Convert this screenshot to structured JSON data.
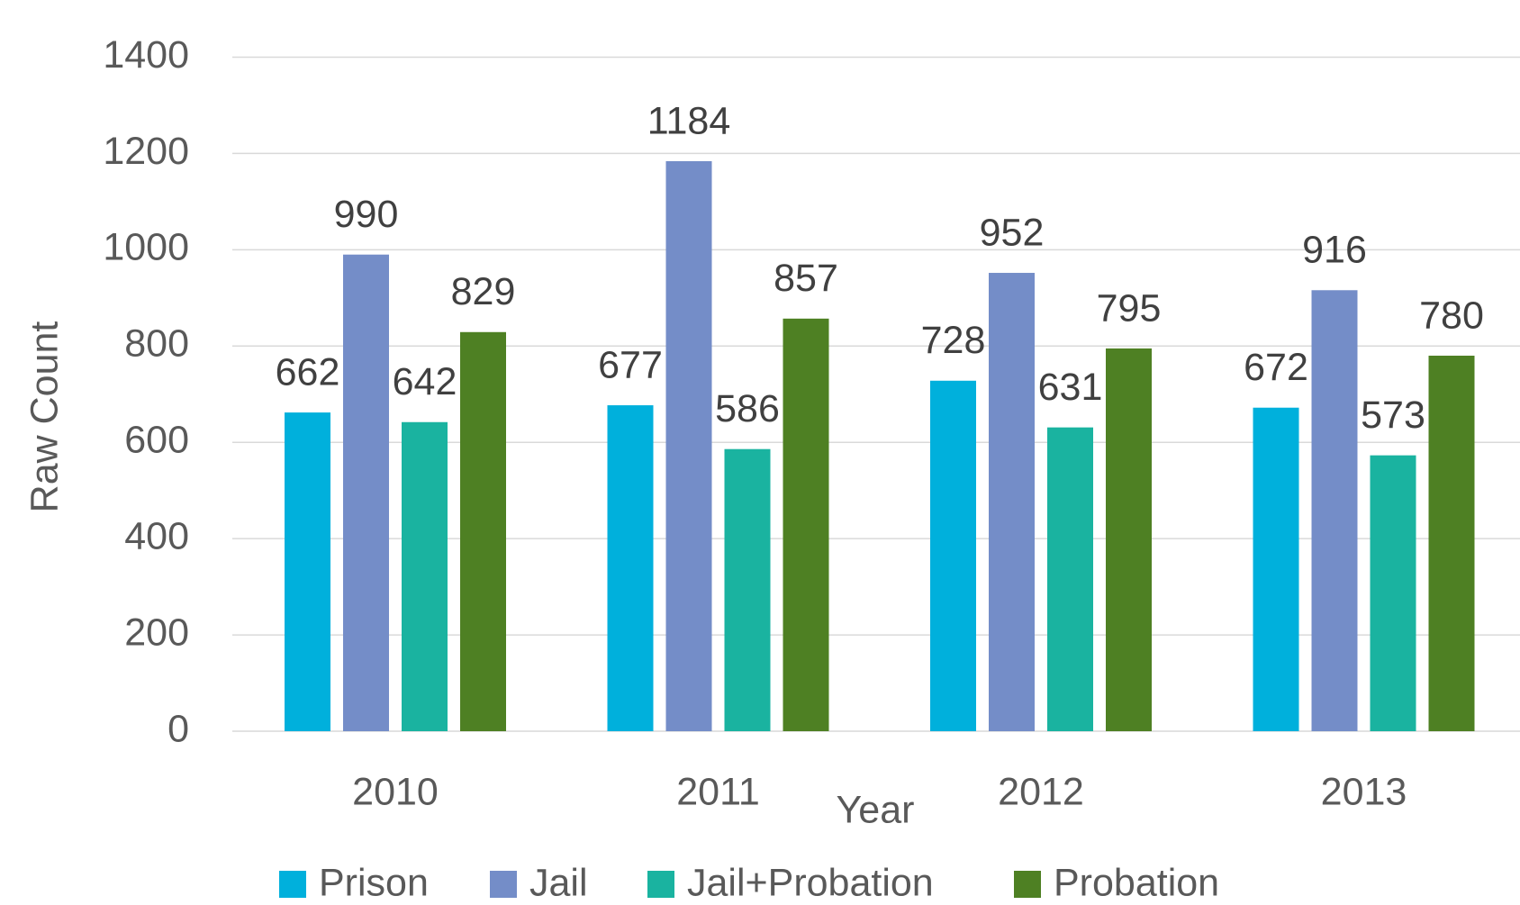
{
  "chart_data": {
    "type": "bar",
    "y_label": "Raw Count",
    "x_label": "Year",
    "categories": [
      "2010",
      "2011",
      "2012",
      "2013"
    ],
    "series": [
      {
        "name": "Prison",
        "color": "#00b0dc",
        "values": [
          662,
          677,
          728,
          672
        ]
      },
      {
        "name": "Jail",
        "color": "#748dc8",
        "values": [
          990,
          1184,
          952,
          916
        ]
      },
      {
        "name": "Jail+Probation",
        "color": "#1ab3a0",
        "values": [
          642,
          586,
          631,
          573
        ]
      },
      {
        "name": "Probation",
        "color": "#4e8023",
        "values": [
          829,
          857,
          795,
          780
        ]
      }
    ],
    "ylim": [
      0,
      1400
    ],
    "yticks": [
      0,
      200,
      400,
      600,
      800,
      1000,
      1200,
      1400
    ],
    "grid": true,
    "legend": "bottom"
  }
}
